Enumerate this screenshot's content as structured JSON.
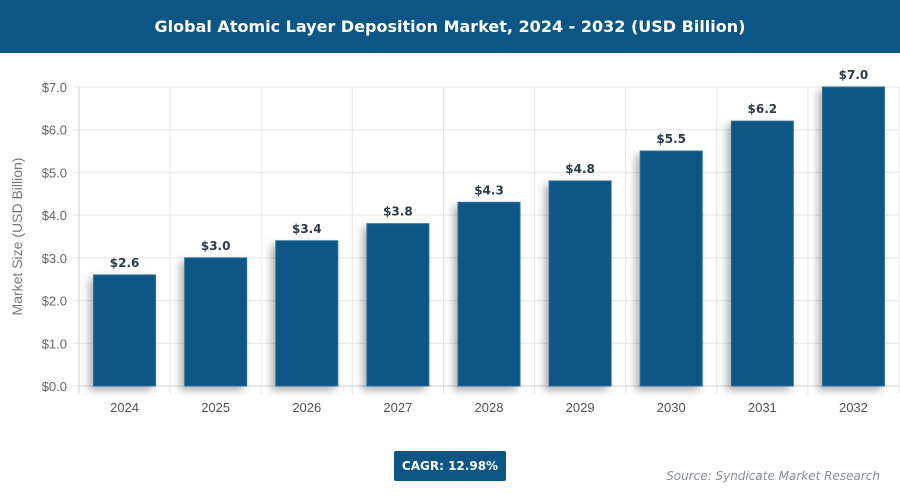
{
  "chart_data": {
    "type": "bar",
    "title": "Global Atomic Layer Deposition Market, 2024 - 2032 (USD Billion)",
    "xlabel": "",
    "ylabel": "Market Size (USD Billion)",
    "categories": [
      "2024",
      "2025",
      "2026",
      "2027",
      "2028",
      "2029",
      "2030",
      "2031",
      "2032"
    ],
    "values": [
      2.6,
      3.0,
      3.4,
      3.8,
      4.3,
      4.8,
      5.5,
      6.2,
      7.0
    ],
    "data_labels": [
      "$2.6",
      "$3.0",
      "$3.4",
      "$3.8",
      "$4.3",
      "$4.8",
      "$5.5",
      "$6.2",
      "$7.0"
    ],
    "ylim": [
      0,
      7
    ],
    "yticks": [
      "$0.0",
      "$1.0",
      "$2.0",
      "$3.0",
      "$4.0",
      "$5.0",
      "$6.0",
      "$7.0"
    ],
    "grid": true,
    "legend": "none",
    "bar_color": "#0c5686"
  },
  "footer": {
    "cagr": "CAGR: 12.98%",
    "source": "Source: Syndicate Market Research"
  }
}
